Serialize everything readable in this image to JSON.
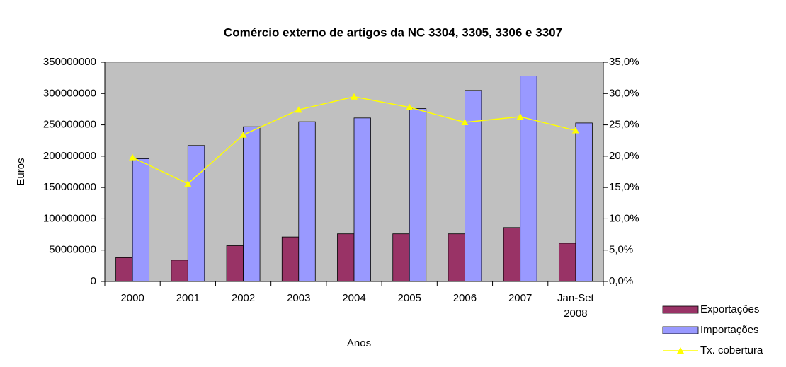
{
  "chart_data": {
    "type": "bar_line",
    "title": "Comércio externo de artigos da NC 3304, 3305, 3306 e 3307",
    "xlabel": "Anos",
    "ylabel": "Euros",
    "categories": [
      "2000",
      "2001",
      "2002",
      "2003",
      "2004",
      "2005",
      "2006",
      "2007",
      "Jan-Set 2008"
    ],
    "series": [
      {
        "name": "Exportações",
        "color": "#993366",
        "type": "bar",
        "values": [
          38000000,
          34000000,
          57000000,
          71000000,
          76000000,
          76000000,
          76000000,
          86000000,
          61000000
        ]
      },
      {
        "name": "Importações",
        "color": "#9999ff",
        "type": "bar",
        "values": [
          196000000,
          217000000,
          247000000,
          255000000,
          261000000,
          276000000,
          305000000,
          328000000,
          253000000
        ]
      },
      {
        "name": "Tx. cobertura",
        "color": "#ffff00",
        "type": "line",
        "axis": "y2",
        "values": [
          19.8,
          15.6,
          23.4,
          27.4,
          29.5,
          27.8,
          25.4,
          26.3,
          24.1
        ]
      }
    ],
    "ylim": [
      0,
      350000000
    ],
    "yticks": [
      0,
      50000000,
      100000000,
      150000000,
      200000000,
      250000000,
      300000000,
      350000000
    ],
    "y2lim": [
      0,
      35
    ],
    "y2ticks": [
      {
        "value": 0,
        "label": "0,0%"
      },
      {
        "value": 5,
        "label": "5,0%"
      },
      {
        "value": 10,
        "label": "10,0%"
      },
      {
        "value": 15,
        "label": "15,0%"
      },
      {
        "value": 20,
        "label": "20,0%"
      },
      {
        "value": 25,
        "label": "25,0%"
      },
      {
        "value": 30,
        "label": "30,0%"
      },
      {
        "value": 35,
        "label": "35,0%"
      }
    ],
    "plot_background": "#c0c0c0"
  }
}
